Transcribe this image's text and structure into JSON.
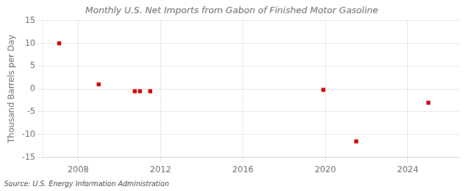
{
  "chart_data": {
    "type": "scatter",
    "title": "Monthly U.S. Net Imports from Gabon of Finished Motor Gasoline",
    "ylabel": "Thousand Barrels per Day",
    "annotation": "Source: U.S. Energy Information Administration",
    "x": [
      2007.08,
      2009.0,
      2010.75,
      2011.0,
      2011.5,
      2019.9,
      2021.5,
      2025.0
    ],
    "values": [
      10.0,
      1.0,
      -0.5,
      -0.5,
      -0.5,
      -0.2,
      -11.5,
      -3.0
    ],
    "color": "#cc0000",
    "marker": "square",
    "xlim": [
      2006.3,
      2026.5
    ],
    "ylim": [
      -15,
      15
    ],
    "xticks": [
      2008,
      2012,
      2016,
      2020,
      2024
    ],
    "yticks": [
      -15,
      -10,
      -5,
      0,
      5,
      10,
      15
    ],
    "grid": true
  }
}
